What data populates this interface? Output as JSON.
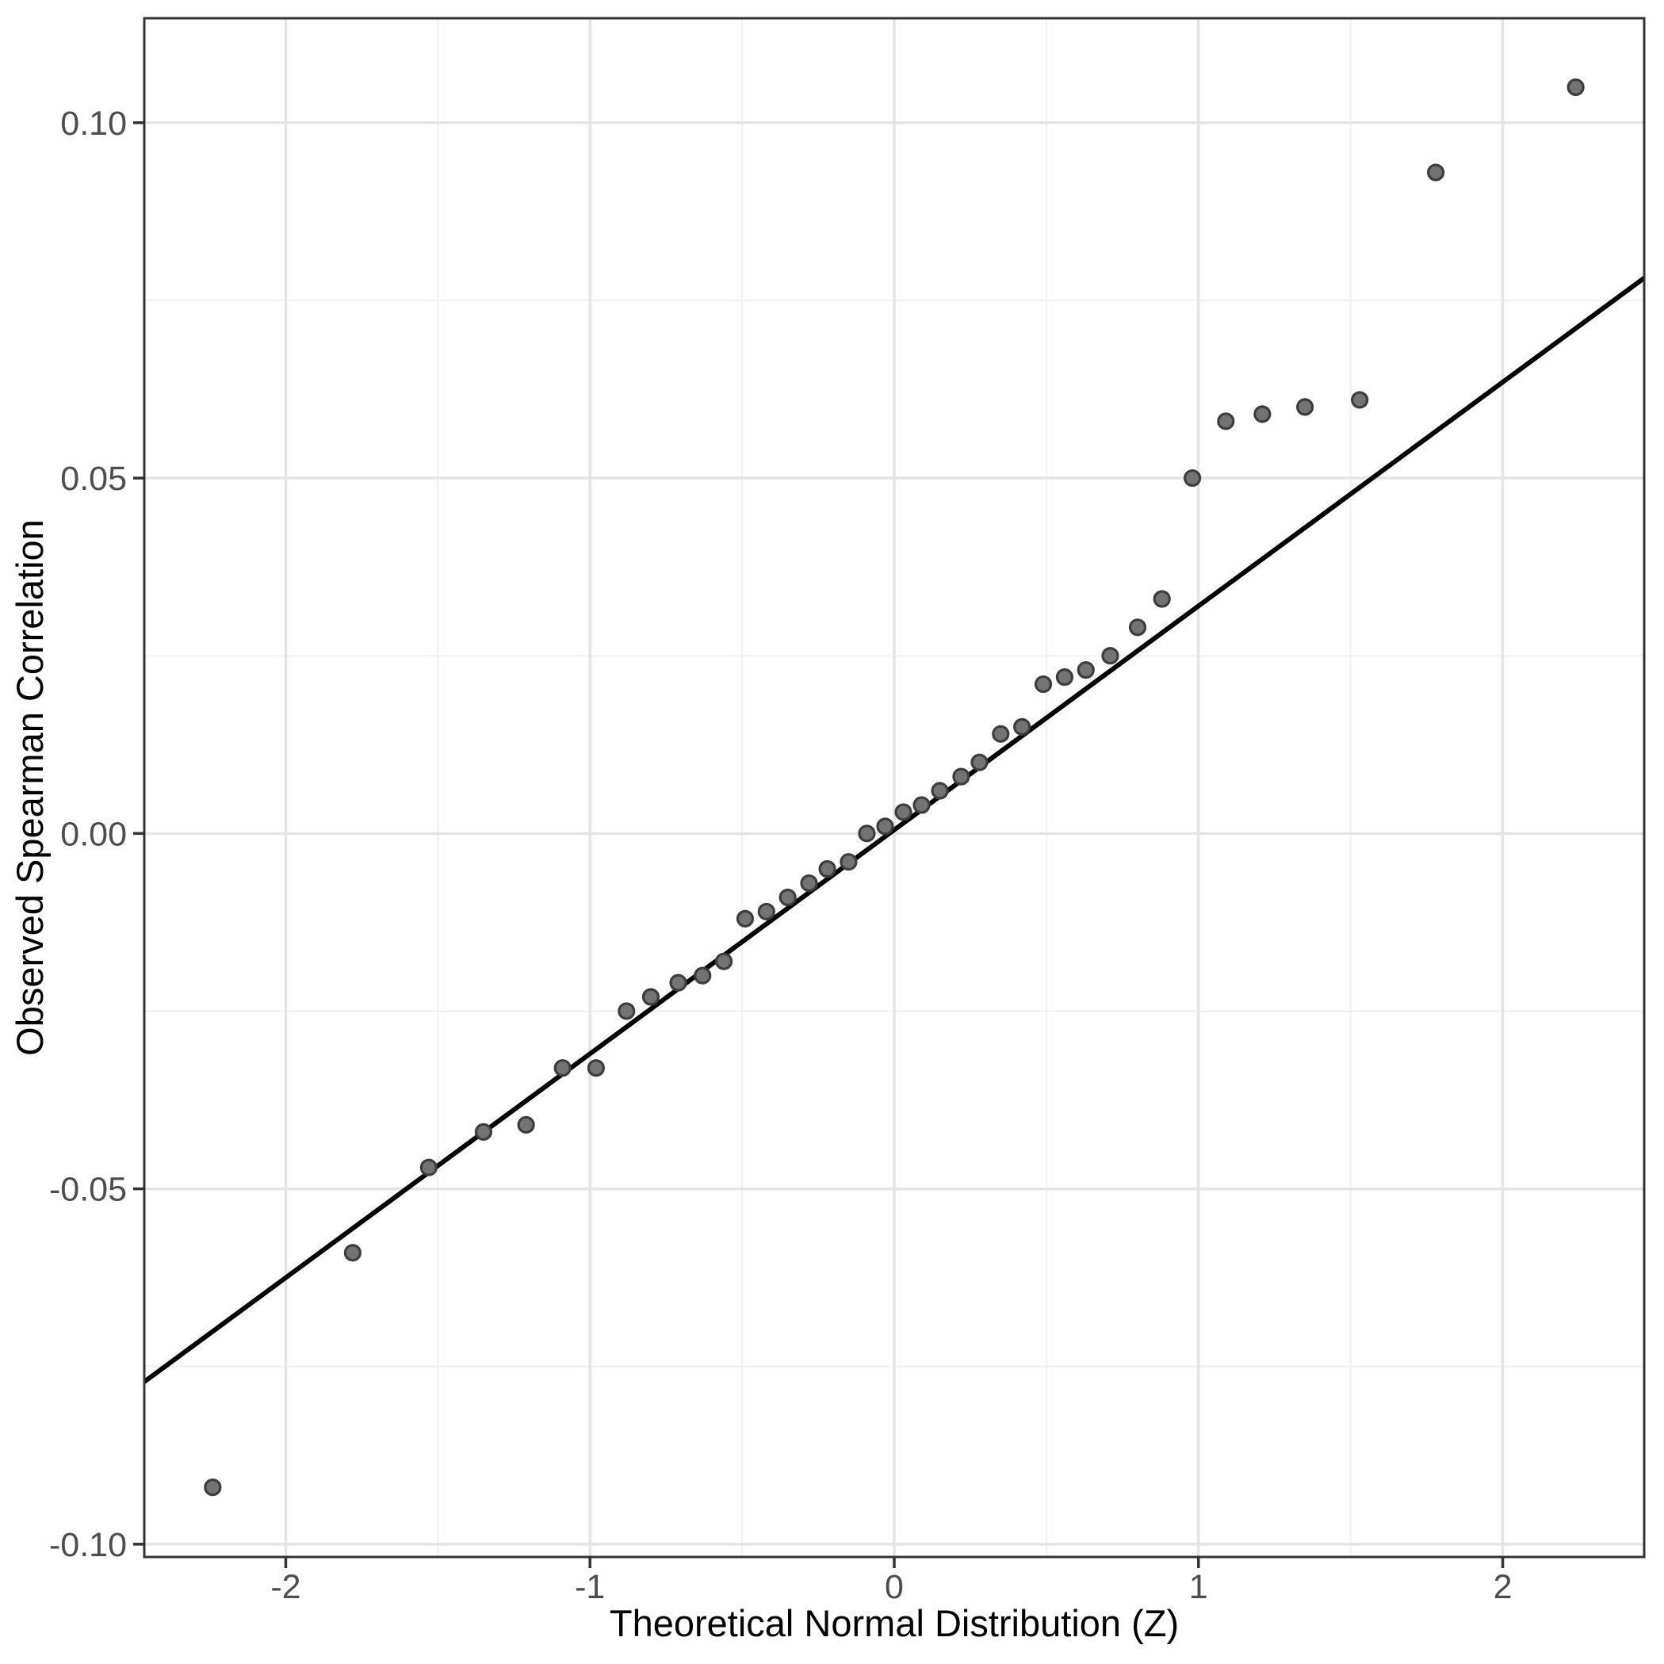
{
  "chart_data": {
    "type": "scatter",
    "title": "",
    "xlabel": "Theoretical Normal Distribution (Z)",
    "ylabel": "Observed Spearman Correlation",
    "xlim": [
      -2.465,
      2.465
    ],
    "ylim": [
      -0.1018,
      0.1147
    ],
    "grid": true,
    "legend": "none",
    "x_ticks": [
      -2,
      -1,
      0,
      1,
      2
    ],
    "x_tick_labels": [
      "-2",
      "-1",
      "0",
      "1",
      "2"
    ],
    "x_minor_gridlines": [
      -1.5,
      -0.5,
      0.5,
      1.5
    ],
    "y_ticks": [
      0.1,
      0.05,
      0.0,
      -0.05,
      -0.1
    ],
    "y_tick_labels": [
      "0.10",
      "0.05",
      "0.00",
      "-0.05",
      "-0.10"
    ],
    "y_minor_gridlines": [
      -0.075,
      -0.025,
      0.025,
      0.075
    ],
    "qq_line": {
      "slope": 0.0315,
      "intercept": 0.0005
    },
    "points": [
      [
        -2.24,
        -0.092
      ],
      [
        -1.78,
        -0.059
      ],
      [
        -1.53,
        -0.047
      ],
      [
        -1.35,
        -0.042
      ],
      [
        -1.21,
        -0.041
      ],
      [
        -1.09,
        -0.033
      ],
      [
        -0.98,
        -0.033
      ],
      [
        -0.88,
        -0.025
      ],
      [
        -0.8,
        -0.023
      ],
      [
        -0.71,
        -0.021
      ],
      [
        -0.63,
        -0.02
      ],
      [
        -0.56,
        -0.018
      ],
      [
        -0.49,
        -0.012
      ],
      [
        -0.42,
        -0.011
      ],
      [
        -0.35,
        -0.009
      ],
      [
        -0.28,
        -0.007
      ],
      [
        -0.22,
        -0.005
      ],
      [
        -0.15,
        -0.004
      ],
      [
        -0.09,
        0.0
      ],
      [
        -0.03,
        0.001
      ],
      [
        0.03,
        0.003
      ],
      [
        0.09,
        0.004
      ],
      [
        0.15,
        0.006
      ],
      [
        0.22,
        0.008
      ],
      [
        0.28,
        0.01
      ],
      [
        0.35,
        0.014
      ],
      [
        0.42,
        0.015
      ],
      [
        0.49,
        0.021
      ],
      [
        0.56,
        0.022
      ],
      [
        0.63,
        0.023
      ],
      [
        0.71,
        0.025
      ],
      [
        0.8,
        0.029
      ],
      [
        0.88,
        0.033
      ],
      [
        0.98,
        0.05
      ],
      [
        1.09,
        0.058
      ],
      [
        1.21,
        0.059
      ],
      [
        1.35,
        0.06
      ],
      [
        1.53,
        0.061
      ],
      [
        1.78,
        0.093
      ],
      [
        2.24,
        0.105
      ]
    ],
    "colors": {
      "background": "#ffffff",
      "panel_background": "#ffffff",
      "panel_border": "#333333",
      "grid_major": "#e4e4e4",
      "grid_minor": "#f0f0f0",
      "point_fill": "#737373",
      "point_stroke": "#3d3d3d",
      "line": "#000000",
      "tick_mark": "#333333",
      "tick_label": "#4d4d4d",
      "axis_title": "#000000"
    }
  }
}
